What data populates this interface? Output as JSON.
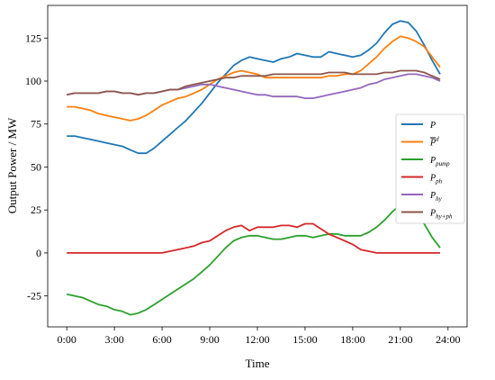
{
  "chart_data": {
    "type": "line",
    "xlabel": "Time",
    "ylabel": "Output Power / MW",
    "x_tick_labels": [
      "0:00",
      "3:00",
      "6:00",
      "9:00",
      "12:00",
      "15:00",
      "18:00",
      "21:00",
      "24:00"
    ],
    "x_ticks_hours": [
      0,
      3,
      6,
      9,
      12,
      15,
      18,
      21,
      24
    ],
    "y_ticks": [
      -25,
      0,
      25,
      50,
      75,
      100,
      125
    ],
    "xlim": [
      -1.2,
      25.2
    ],
    "ylim": [
      -43,
      144
    ],
    "grid": false,
    "legend_position": "center-right",
    "series": [
      {
        "name": "P",
        "color": "#1f77b4",
        "x": [
          0,
          0.5,
          1,
          1.5,
          2,
          2.5,
          3,
          3.5,
          4,
          4.5,
          5,
          5.5,
          6,
          6.5,
          7,
          7.5,
          8,
          8.5,
          9,
          9.5,
          10,
          10.5,
          11,
          11.5,
          12,
          12.5,
          13,
          13.5,
          14,
          14.5,
          15,
          15.5,
          16,
          16.5,
          17,
          17.5,
          18,
          18.5,
          19,
          19.5,
          20,
          20.5,
          21,
          21.5,
          22,
          22.5,
          23,
          23.5
        ],
        "y": [
          68,
          68,
          67,
          66,
          65,
          64,
          63,
          62,
          60,
          58,
          58,
          61,
          65,
          69,
          73,
          77,
          82,
          87,
          93,
          99,
          104,
          109,
          112,
          114,
          113,
          112,
          111,
          113,
          114,
          116,
          115,
          114,
          114,
          117,
          116,
          115,
          114,
          115,
          118,
          122,
          128,
          133,
          135,
          134,
          129,
          121,
          112,
          104
        ]
      },
      {
        "name": "P^d",
        "color": "#ff7f0e",
        "x": [
          0,
          0.5,
          1,
          1.5,
          2,
          2.5,
          3,
          3.5,
          4,
          4.5,
          5,
          5.5,
          6,
          6.5,
          7,
          7.5,
          8,
          8.5,
          9,
          9.5,
          10,
          10.5,
          11,
          11.5,
          12,
          12.5,
          13,
          13.5,
          14,
          14.5,
          15,
          15.5,
          16,
          16.5,
          17,
          17.5,
          18,
          18.5,
          19,
          19.5,
          20,
          20.5,
          21,
          21.5,
          22,
          22.5,
          23,
          23.5
        ],
        "y": [
          85,
          85,
          84,
          83,
          81,
          80,
          79,
          78,
          77,
          78,
          80,
          83,
          86,
          88,
          90,
          91,
          93,
          95,
          98,
          101,
          103,
          105,
          106,
          105,
          104,
          102,
          102,
          102,
          102,
          102,
          102,
          102,
          102,
          103,
          103,
          104,
          104,
          106,
          110,
          114,
          119,
          123,
          126,
          125,
          123,
          120,
          114,
          108
        ]
      },
      {
        "name": "P_pump",
        "color": "#2ca02c",
        "x": [
          0,
          0.5,
          1,
          1.5,
          2,
          2.5,
          3,
          3.5,
          4,
          4.5,
          5,
          5.5,
          6,
          6.5,
          7,
          7.5,
          8,
          8.5,
          9,
          9.5,
          10,
          10.5,
          11,
          11.5,
          12,
          12.5,
          13,
          13.5,
          14,
          14.5,
          15,
          15.5,
          16,
          16.5,
          17,
          17.5,
          18,
          18.5,
          19,
          19.5,
          20,
          20.5,
          21,
          21.5,
          22,
          22.5,
          23,
          23.5
        ],
        "y": [
          -24,
          -25,
          -26,
          -28,
          -30,
          -31,
          -33,
          -34,
          -36,
          -35,
          -33,
          -30,
          -27,
          -24,
          -21,
          -18,
          -15,
          -11,
          -7,
          -2,
          3,
          7,
          9,
          10,
          10,
          9,
          8,
          8,
          9,
          10,
          10,
          9,
          10,
          11,
          11,
          10,
          10,
          10,
          12,
          15,
          19,
          24,
          28,
          27,
          24,
          17,
          9,
          3
        ]
      },
      {
        "name": "P_ph",
        "color": "#d62728",
        "x": [
          0,
          0.5,
          1,
          1.5,
          2,
          2.5,
          3,
          3.5,
          4,
          4.5,
          5,
          5.5,
          6,
          6.5,
          7,
          7.5,
          8,
          8.5,
          9,
          9.5,
          10,
          10.5,
          11,
          11.5,
          12,
          12.5,
          13,
          13.5,
          14,
          14.5,
          15,
          15.5,
          16,
          16.5,
          17,
          17.5,
          18,
          18.5,
          19,
          19.5,
          20,
          20.5,
          21,
          21.5,
          22,
          22.5,
          23,
          23.5
        ],
        "y": [
          0,
          0,
          0,
          0,
          0,
          0,
          0,
          0,
          0,
          0,
          0,
          0,
          0,
          1,
          2,
          3,
          4,
          6,
          7,
          10,
          13,
          15,
          16,
          13,
          15,
          15,
          15,
          16,
          16,
          15,
          17,
          17,
          14,
          11,
          9,
          7,
          5,
          2,
          1,
          0,
          0,
          0,
          0,
          0,
          0,
          0,
          0,
          0
        ]
      },
      {
        "name": "P_hy",
        "color": "#9467bd",
        "x": [
          0,
          0.5,
          1,
          1.5,
          2,
          2.5,
          3,
          3.5,
          4,
          4.5,
          5,
          5.5,
          6,
          6.5,
          7,
          7.5,
          8,
          8.5,
          9,
          9.5,
          10,
          10.5,
          11,
          11.5,
          12,
          12.5,
          13,
          13.5,
          14,
          14.5,
          15,
          15.5,
          16,
          16.5,
          17,
          17.5,
          18,
          18.5,
          19,
          19.5,
          20,
          20.5,
          21,
          21.5,
          22,
          22.5,
          23,
          23.5
        ],
        "y": [
          92,
          93,
          93,
          93,
          93,
          94,
          94,
          93,
          93,
          92,
          93,
          93,
          94,
          95,
          95,
          96,
          97,
          98,
          98,
          97,
          96,
          95,
          94,
          93,
          92,
          92,
          91,
          91,
          91,
          91,
          90,
          90,
          91,
          92,
          93,
          94,
          95,
          96,
          98,
          99,
          101,
          102,
          103,
          104,
          104,
          103,
          102,
          100
        ]
      },
      {
        "name": "P_hy+ph",
        "color": "#8c564b",
        "x": [
          0,
          0.5,
          1,
          1.5,
          2,
          2.5,
          3,
          3.5,
          4,
          4.5,
          5,
          5.5,
          6,
          6.5,
          7,
          7.5,
          8,
          8.5,
          9,
          9.5,
          10,
          10.5,
          11,
          11.5,
          12,
          12.5,
          13,
          13.5,
          14,
          14.5,
          15,
          15.5,
          16,
          16.5,
          17,
          17.5,
          18,
          18.5,
          19,
          19.5,
          20,
          20.5,
          21,
          21.5,
          22,
          22.5,
          23,
          23.5
        ],
        "y": [
          92,
          93,
          93,
          93,
          93,
          94,
          94,
          93,
          93,
          92,
          93,
          93,
          94,
          95,
          95,
          97,
          98,
          99,
          100,
          101,
          102,
          102,
          103,
          103,
          103,
          103,
          104,
          104,
          104,
          104,
          104,
          104,
          104,
          105,
          105,
          105,
          104,
          104,
          104,
          104,
          105,
          105,
          106,
          106,
          106,
          105,
          103,
          101
        ]
      }
    ],
    "legend": [
      {
        "label": "P",
        "color": "#1f77b4"
      },
      {
        "label": "P^d",
        "color": "#ff7f0e"
      },
      {
        "label": "P_pump",
        "color": "#2ca02c"
      },
      {
        "label": "P_ph",
        "color": "#d62728"
      },
      {
        "label": "P_hy",
        "color": "#9467bd"
      },
      {
        "label": "P_hy+ph",
        "color": "#8c564b"
      }
    ]
  }
}
